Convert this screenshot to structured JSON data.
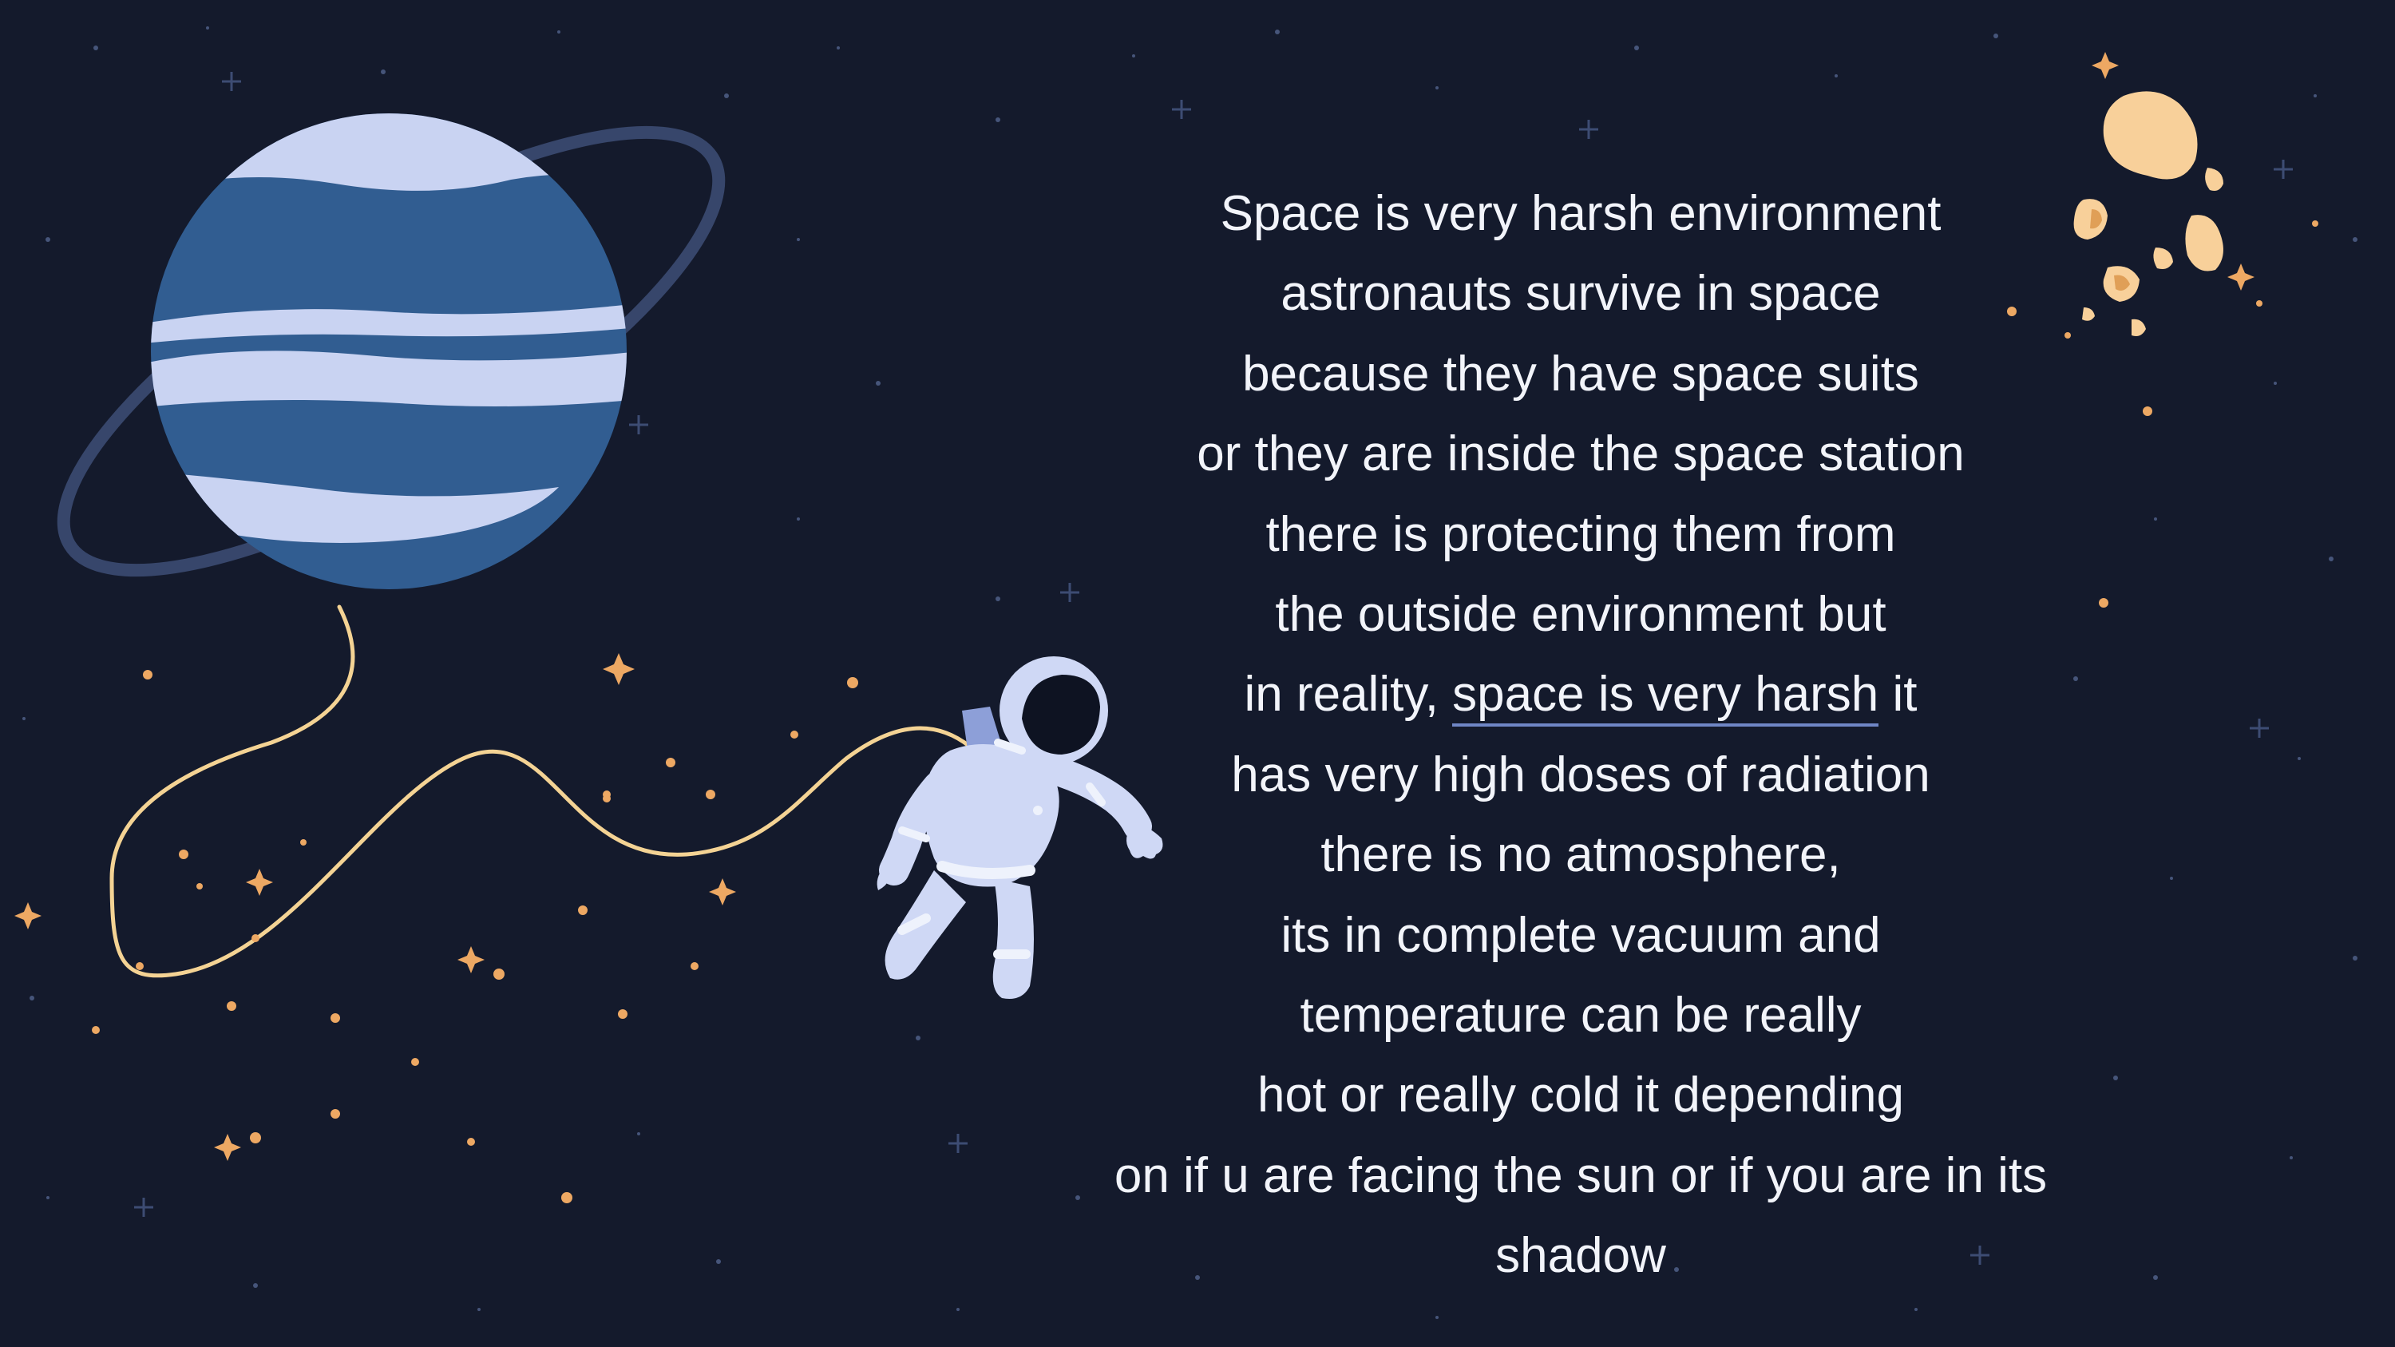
{
  "slide": {
    "text_lines": [
      "Space is very harsh environment",
      "astronauts survive in space",
      "because they have space suits",
      "or they are inside the space station",
      "there is protecting them from",
      "the outside environment but"
    ],
    "line7": {
      "before": "in reality, ",
      "underlined": "space is very harsh",
      "after": " it"
    },
    "text_lines_after": [
      "has very high doses of radiation",
      "there is no atmosphere,",
      "its in complete vacuum and",
      "temperature can be really",
      "hot or really cold it depending",
      "on if u are facing the sun or if you are in its",
      "shadow"
    ]
  },
  "colors": {
    "background": "#141a2c",
    "planet_body": "#315d91",
    "planet_stripes": "#c9d3f2",
    "ring": "#37466b",
    "tether": "#f4d394",
    "suit": "#cfd8f5",
    "asteroid": "#f8d09a",
    "text": "#f2f4fa",
    "underline": "#6f86c6"
  }
}
